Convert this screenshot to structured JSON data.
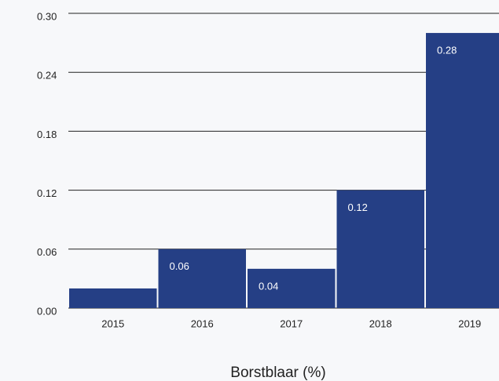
{
  "chart_data": {
    "type": "bar",
    "x_label": "Borstblaar (%)",
    "categories": [
      "2015",
      "2016",
      "2017",
      "2018",
      "2019"
    ],
    "values": [
      0.02,
      0.06,
      0.04,
      0.12,
      0.28
    ],
    "value_labels": [
      null,
      "0.06",
      "0.04",
      "0.12",
      "0.28"
    ],
    "color": "#253f85",
    "ylim": [
      0,
      0.3
    ],
    "yticks": [
      {
        "value": 0,
        "label": "0.00"
      },
      0.06,
      0.12,
      0.18,
      0.24,
      {
        "value": 0.3,
        "label": "0.30"
      }
    ],
    "grid": true
  }
}
